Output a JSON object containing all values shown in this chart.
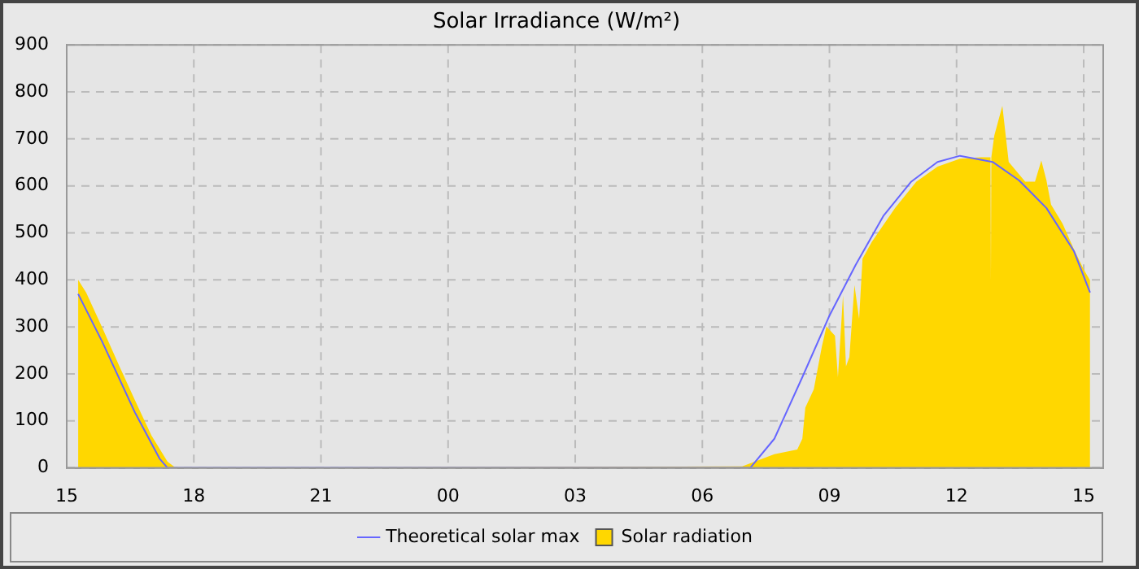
{
  "chart_data": {
    "type": "line",
    "title": "Solar Irradiance (W/m²)",
    "xlim": [
      15,
      39.46
    ],
    "xticks": [
      {
        "value": 15,
        "label": "15"
      },
      {
        "value": 18,
        "label": "18"
      },
      {
        "value": 21,
        "label": "21"
      },
      {
        "value": 24,
        "label": "00"
      },
      {
        "value": 27,
        "label": "03"
      },
      {
        "value": 30,
        "label": "06"
      },
      {
        "value": 33,
        "label": "09"
      },
      {
        "value": 36,
        "label": "12"
      },
      {
        "value": 39,
        "label": "15"
      }
    ],
    "ylim": [
      0,
      900
    ],
    "yticks": [
      0,
      100,
      200,
      300,
      400,
      500,
      600,
      700,
      800,
      900
    ],
    "grid": true,
    "legend": "bottom",
    "series": [
      {
        "name": "Theoretical solar max",
        "color": "#6666ff",
        "x": [
          15.27,
          15.84,
          16.61,
          17.19,
          17.38,
          31.13,
          31.7,
          32.36,
          33.0,
          33.62,
          34.28,
          34.93,
          35.55,
          36.08,
          36.85,
          37.47,
          38.12,
          38.77,
          39.15
        ],
        "values": [
          370,
          268,
          118,
          20,
          0,
          0,
          62,
          193,
          324,
          432,
          537,
          609,
          651,
          664,
          651,
          612,
          553,
          461,
          373
        ]
      },
      {
        "name": "Solar radiation",
        "type": "area",
        "color": "#ffd700",
        "x": [
          15.27,
          15.46,
          15.84,
          16.23,
          16.61,
          17.0,
          17.38,
          17.57,
          30.94,
          31.32,
          31.7,
          32.24,
          32.36,
          32.43,
          32.63,
          32.82,
          32.93,
          33.13,
          33.2,
          33.32,
          33.39,
          33.47,
          33.59,
          33.7,
          33.78,
          34.0,
          34.55,
          35.05,
          35.55,
          36.08,
          36.58,
          36.8,
          36.81,
          36.82,
          36.89,
          37.08,
          37.23,
          37.62,
          37.85,
          38.0,
          38.12,
          38.23,
          38.5,
          38.77,
          39.0,
          39.15
        ],
        "values": [
          400,
          373,
          298,
          219,
          144,
          69,
          13,
          0,
          3,
          16,
          29,
          39,
          62,
          128,
          167,
          258,
          301,
          281,
          193,
          367,
          216,
          236,
          389,
          317,
          445,
          481,
          553,
          609,
          641,
          658,
          661,
          661,
          396,
          661,
          707,
          770,
          651,
          609,
          609,
          654,
          612,
          560,
          520,
          465,
          422,
          399
        ]
      }
    ]
  }
}
